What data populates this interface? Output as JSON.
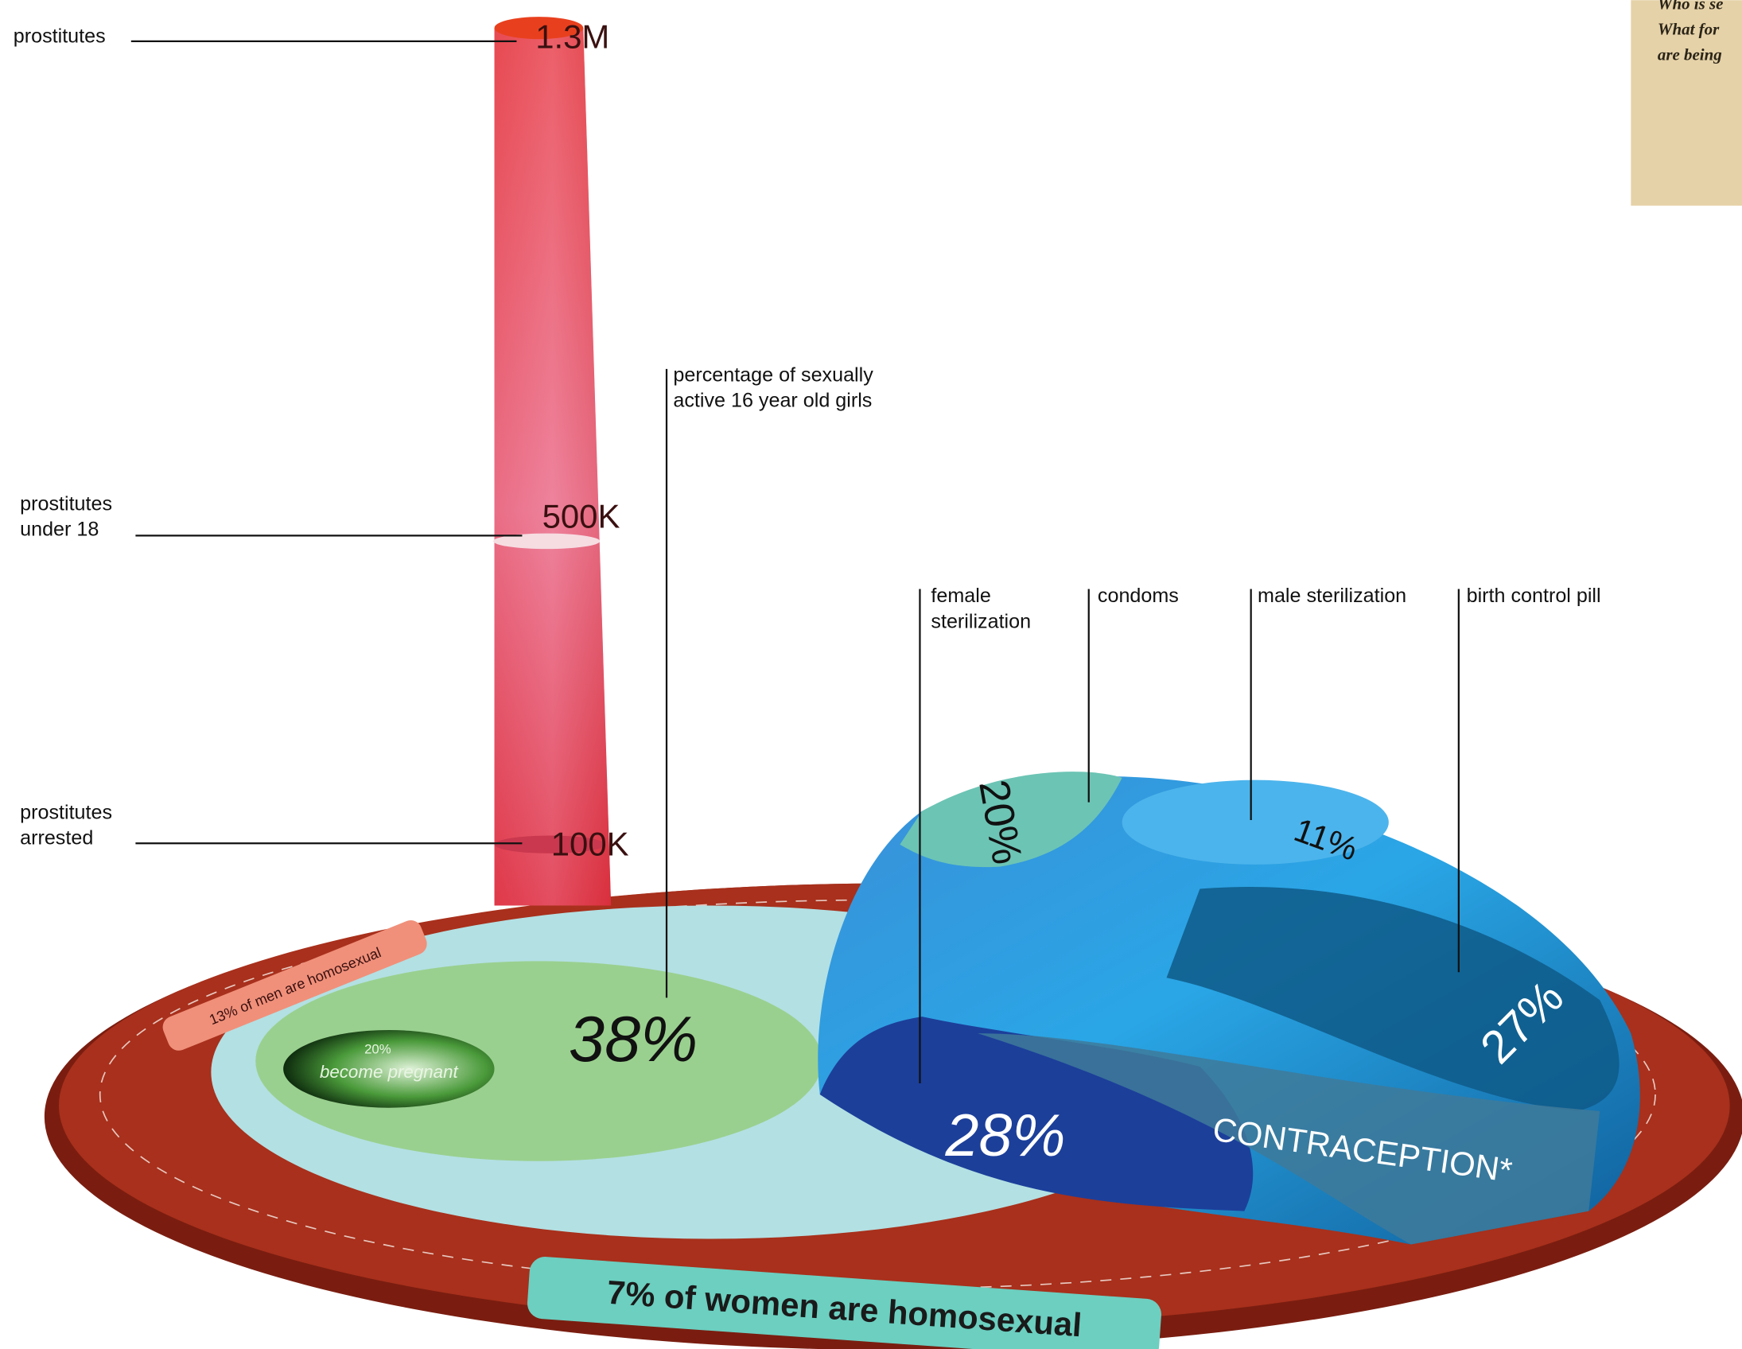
{
  "left_labels": [
    {
      "lines": [
        "prostitutes"
      ]
    },
    {
      "lines": [
        "prostitutes",
        "under 18"
      ]
    },
    {
      "lines": [
        "prostitutes",
        "arrested"
      ]
    }
  ],
  "column_values": [
    "1.3M",
    "500K",
    "100K"
  ],
  "pregnancy": {
    "label_lines": [
      "percentage of sexually",
      "active 16 year old girls"
    ],
    "value": "38%",
    "pregnant_value": "20%",
    "pregnant_text": "become pregnant"
  },
  "ring_labels": {
    "men": "13% of men are homosexual",
    "women": "7% of women are homosexual"
  },
  "contraception": {
    "title": "CONTRACEPTION*",
    "methods": [
      {
        "lines": [
          "female",
          "sterilization"
        ],
        "value": "28%"
      },
      {
        "lines": [
          "condoms"
        ],
        "value": "20%"
      },
      {
        "lines": [
          "male sterilization"
        ],
        "value": "11%"
      },
      {
        "lines": [
          "birth control pill"
        ],
        "value": "27%"
      }
    ]
  },
  "side_note": {
    "lines": [
      "Who is se",
      "What for",
      "are being"
    ]
  }
}
